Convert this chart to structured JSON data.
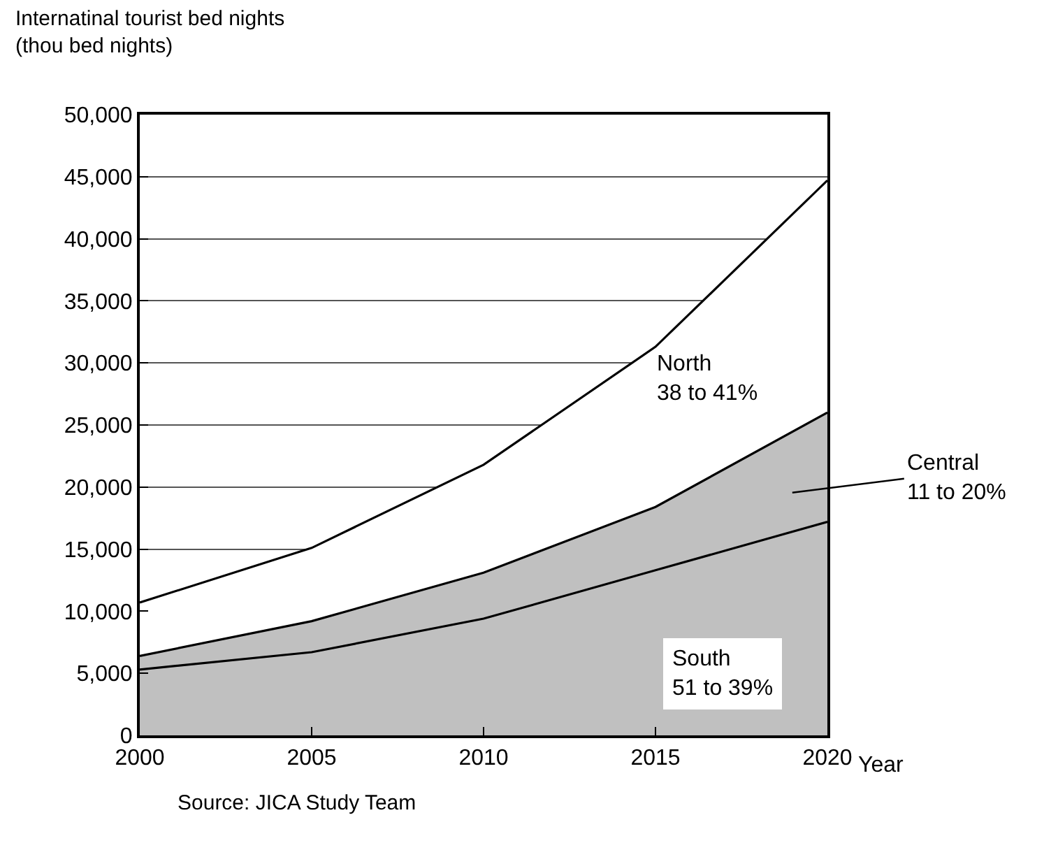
{
  "chart_data": {
    "type": "area",
    "stacked": true,
    "ylabel": "Internatinal tourist bed nights\n(thou bed nights)",
    "xlabel": "Year",
    "x": [
      2000,
      2005,
      2010,
      2015,
      2020
    ],
    "series": [
      {
        "color": "#c0c0c0",
        "values": [
          5300,
          6700,
          9400,
          13300,
          17200
        ]
      },
      {
        "color": "#c0c0c0",
        "values": [
          1100,
          2500,
          3700,
          5100,
          8800
        ]
      },
      {
        "color": "#ffffff",
        "values": [
          4300,
          5900,
          8700,
          12900,
          18700
        ]
      }
    ],
    "xlim": [
      2000,
      2020
    ],
    "xticks": [
      2000,
      2005,
      2010,
      2015,
      2020
    ],
    "ylim": [
      0,
      50000
    ],
    "yticks": [
      {
        "value": 0,
        "label": "0"
      },
      {
        "value": 5000,
        "label": "5,000"
      },
      {
        "value": 10000,
        "label": "10,000"
      },
      {
        "value": 15000,
        "label": "15,000"
      },
      {
        "value": 20000,
        "label": "20,000"
      },
      {
        "value": 25000,
        "label": "25,000"
      },
      {
        "value": 30000,
        "label": "30,000"
      },
      {
        "value": 35000,
        "label": "35,000"
      },
      {
        "value": 40000,
        "label": "40,000"
      },
      {
        "value": 45000,
        "label": "45,000"
      },
      {
        "value": 50000,
        "label": "50,000"
      }
    ],
    "grid": "y",
    "annotations": [
      "North\n38 to 41%",
      "Central\n11 to 20%",
      "South\n51 to 39%",
      "Source: JICA Study Team"
    ]
  }
}
